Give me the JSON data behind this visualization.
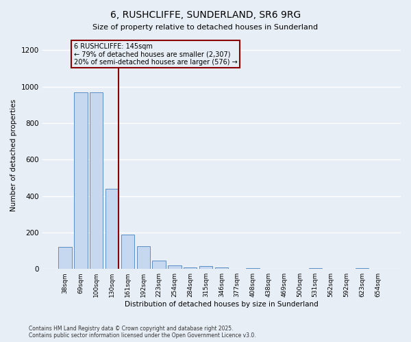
{
  "title": "6, RUSHCLIFFE, SUNDERLAND, SR6 9RG",
  "subtitle": "Size of property relative to detached houses in Sunderland",
  "xlabel": "Distribution of detached houses by size in Sunderland",
  "ylabel": "Number of detached properties",
  "categories": [
    "38sqm",
    "69sqm",
    "100sqm",
    "130sqm",
    "161sqm",
    "192sqm",
    "223sqm",
    "254sqm",
    "284sqm",
    "315sqm",
    "346sqm",
    "377sqm",
    "408sqm",
    "438sqm",
    "469sqm",
    "500sqm",
    "531sqm",
    "562sqm",
    "592sqm",
    "623sqm",
    "654sqm"
  ],
  "values": [
    120,
    970,
    970,
    440,
    190,
    125,
    45,
    20,
    10,
    15,
    10,
    0,
    5,
    0,
    0,
    0,
    5,
    0,
    0,
    5,
    0
  ],
  "bar_color": "#c5d8f0",
  "bar_edge_color": "#5b8ec4",
  "vline_x_index": 3,
  "vline_color": "#8b0000",
  "annotation_title": "6 RUSHCLIFFE: 145sqm",
  "annotation_line1": "← 79% of detached houses are smaller (2,307)",
  "annotation_line2": "20% of semi-detached houses are larger (576) →",
  "annotation_box_color": "#8b0000",
  "ylim": [
    0,
    1250
  ],
  "yticks": [
    0,
    200,
    400,
    600,
    800,
    1000,
    1200
  ],
  "background_color": "#e8eef6",
  "grid_color": "#ffffff",
  "footer_line1": "Contains HM Land Registry data © Crown copyright and database right 2025.",
  "footer_line2": "Contains public sector information licensed under the Open Government Licence v3.0."
}
